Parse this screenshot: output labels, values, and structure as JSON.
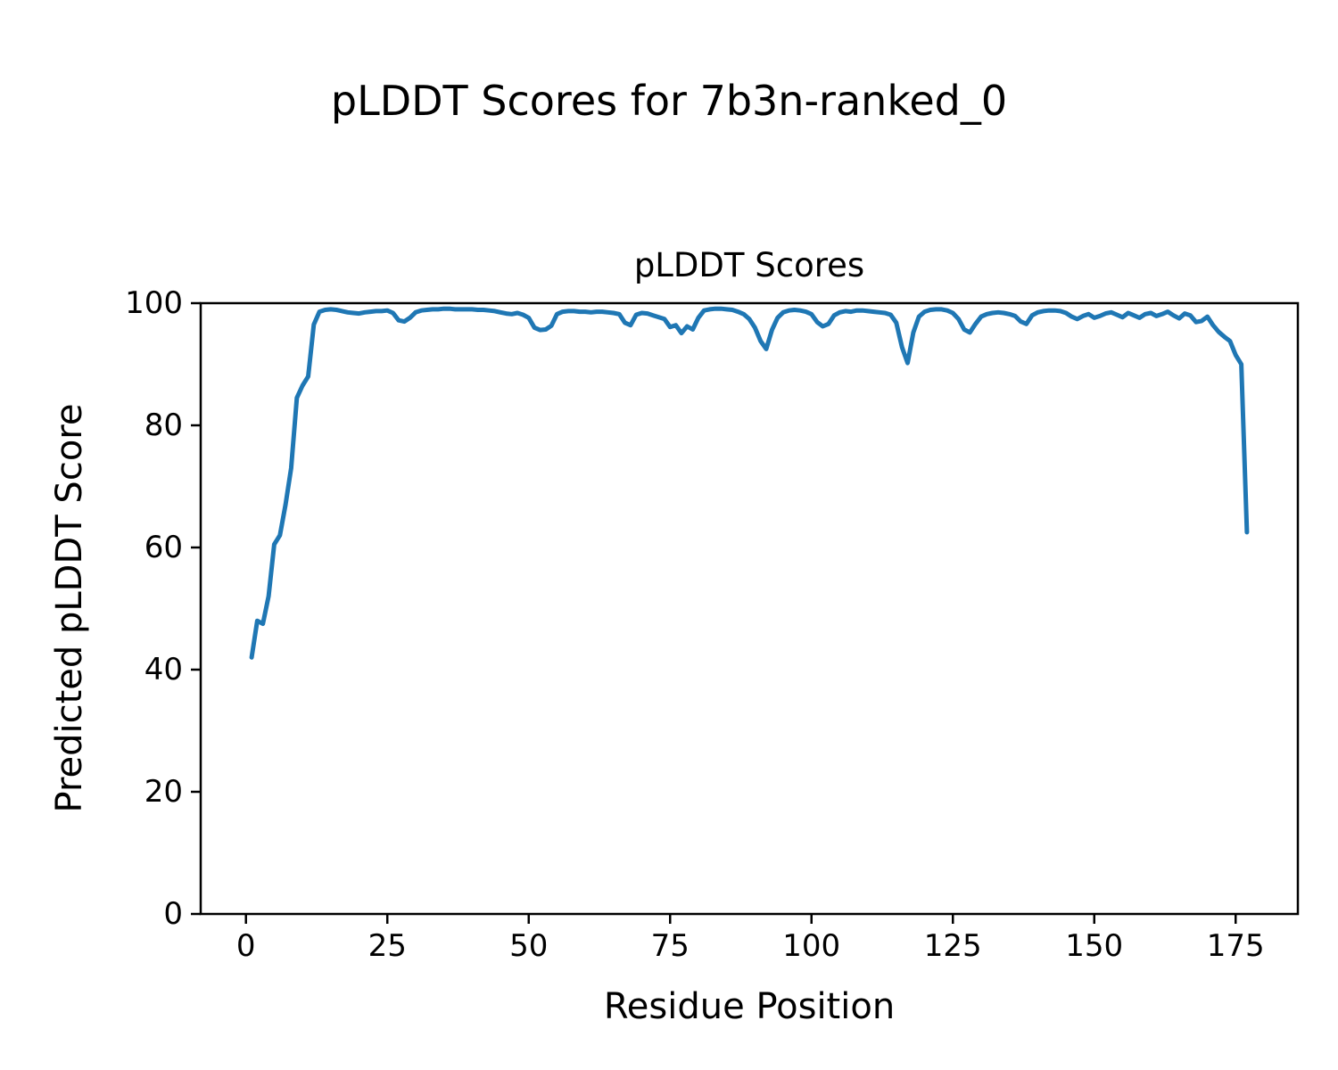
{
  "figure": {
    "suptitle": "pLDDT Scores for 7b3n-ranked_0",
    "background_color": "#ffffff"
  },
  "chart_data": {
    "type": "line",
    "title": "pLDDT Scores",
    "xlabel": "Residue Position",
    "ylabel": "Predicted pLDDT Score",
    "x_ticks": [
      0,
      25,
      50,
      75,
      100,
      125,
      150,
      175
    ],
    "y_ticks": [
      0,
      20,
      40,
      60,
      80,
      100
    ],
    "xlim": [
      -8,
      186
    ],
    "ylim": [
      0,
      100
    ],
    "grid": false,
    "legend": "none",
    "line_color": "#1f77b4",
    "spine_color": "#000000",
    "series": [
      {
        "name": "pLDDT",
        "x_start": 1,
        "x_step": 1,
        "values": [
          42.0,
          48.0,
          47.5,
          52.0,
          60.5,
          62.0,
          67.0,
          73.0,
          84.5,
          86.5,
          88.0,
          96.5,
          98.6,
          98.9,
          99.0,
          98.9,
          98.7,
          98.5,
          98.4,
          98.3,
          98.5,
          98.6,
          98.7,
          98.7,
          98.8,
          98.4,
          97.2,
          97.0,
          97.6,
          98.5,
          98.8,
          98.9,
          99.0,
          99.0,
          99.1,
          99.1,
          99.0,
          99.0,
          99.0,
          99.0,
          98.9,
          98.9,
          98.8,
          98.7,
          98.5,
          98.3,
          98.2,
          98.4,
          98.1,
          97.6,
          96.0,
          95.6,
          95.7,
          96.3,
          98.2,
          98.6,
          98.7,
          98.7,
          98.6,
          98.6,
          98.5,
          98.6,
          98.6,
          98.5,
          98.4,
          98.2,
          96.8,
          96.4,
          98.1,
          98.4,
          98.3,
          98.0,
          97.7,
          97.4,
          96.1,
          96.4,
          95.1,
          96.2,
          95.7,
          97.6,
          98.8,
          99.0,
          99.1,
          99.1,
          99.0,
          98.9,
          98.6,
          98.2,
          97.4,
          96.0,
          93.8,
          92.5,
          95.6,
          97.6,
          98.5,
          98.8,
          98.9,
          98.8,
          98.6,
          98.2,
          96.9,
          96.2,
          96.6,
          98.0,
          98.5,
          98.7,
          98.6,
          98.8,
          98.8,
          98.7,
          98.6,
          98.5,
          98.4,
          98.1,
          96.8,
          92.8,
          90.2,
          95.2,
          97.8,
          98.6,
          98.9,
          99.0,
          99.0,
          98.8,
          98.4,
          97.4,
          95.7,
          95.2,
          96.6,
          97.8,
          98.2,
          98.4,
          98.5,
          98.4,
          98.2,
          97.9,
          97.0,
          96.6,
          98.0,
          98.5,
          98.7,
          98.8,
          98.8,
          98.7,
          98.4,
          97.8,
          97.4,
          97.9,
          98.2,
          97.6,
          97.9,
          98.3,
          98.5,
          98.1,
          97.7,
          98.4,
          98.0,
          97.6,
          98.2,
          98.4,
          97.9,
          98.2,
          98.6,
          98.0,
          97.5,
          98.3,
          98.0,
          96.9,
          97.1,
          97.8,
          96.4,
          95.3,
          94.5,
          93.8,
          91.5,
          90.0,
          62.5
        ]
      }
    ]
  }
}
